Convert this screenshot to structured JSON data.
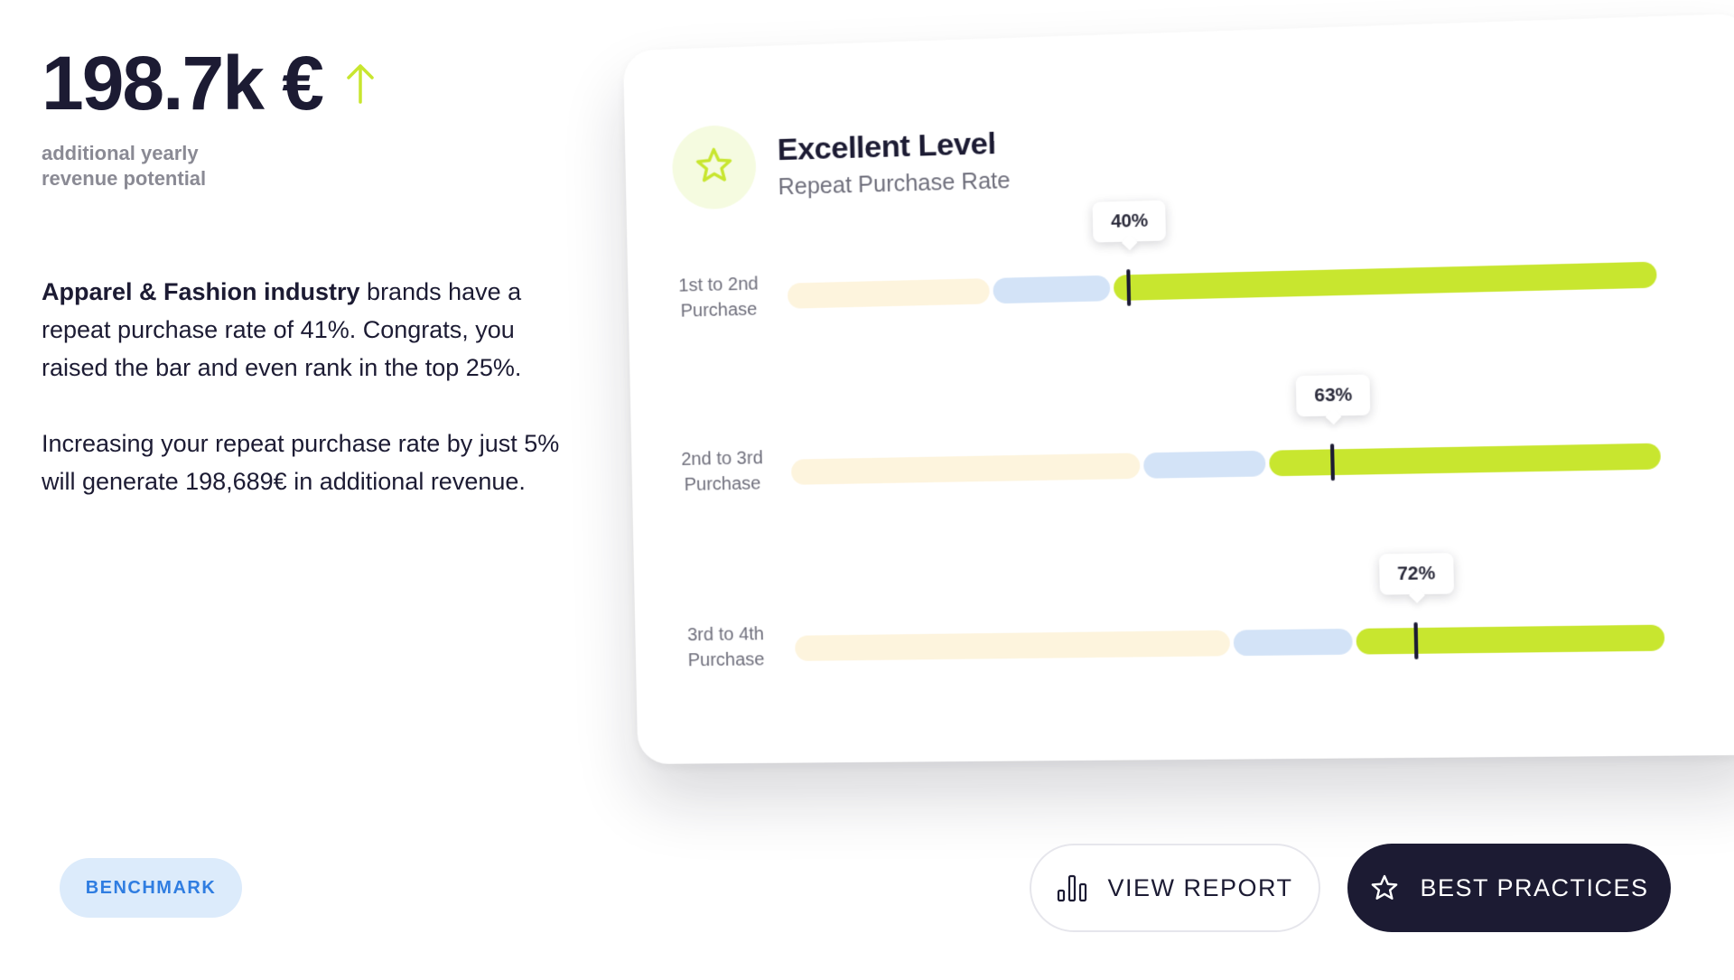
{
  "summary": {
    "metric_value": "198.7k €",
    "metric_trend_icon": "arrow-up-icon",
    "metric_sub_line1": "additional yearly",
    "metric_sub_line2": "revenue potential",
    "para1_bold": "Apparel & Fashion industry",
    "para1_rest": " brands have a repeat purchase rate of 41%. Congrats, you raised the bar and even rank in the top 25%.",
    "para2": "Increasing your repeat purchase rate by just 5% will generate 198,689€ in additional revenue."
  },
  "card": {
    "title": "Excellent Level",
    "subtitle": "Repeat Purchase Rate",
    "badge_icon": "star-icon",
    "rows": [
      {
        "label_line1": "1st to 2nd",
        "label_line2": "Purchase",
        "value_label": "40%",
        "value": 0.4,
        "low_end": 0.24,
        "mid_end": 0.38
      },
      {
        "label_line1": "2nd to 3rd",
        "label_line2": "Purchase",
        "value_label": "63%",
        "value": 0.63,
        "low_end": 0.41,
        "mid_end": 0.555
      },
      {
        "label_line1": "3rd to 4th",
        "label_line2": "Purchase",
        "value_label": "72%",
        "value": 0.72,
        "low_end": 0.51,
        "mid_end": 0.65
      }
    ]
  },
  "controls": {
    "benchmark_label": "BENCHMARK",
    "view_report_label": "VIEW REPORT",
    "view_report_icon": "bar-chart-icon",
    "best_practices_label": "BEST PRACTICES",
    "best_practices_icon": "star-outline-icon"
  },
  "colors": {
    "accent_green": "#c8e62f",
    "mid_blue": "#d3e3f7",
    "low_cream": "#fdf4dd",
    "dark_navy": "#1c1b33",
    "benchmark_blue": "#2f7de1"
  }
}
